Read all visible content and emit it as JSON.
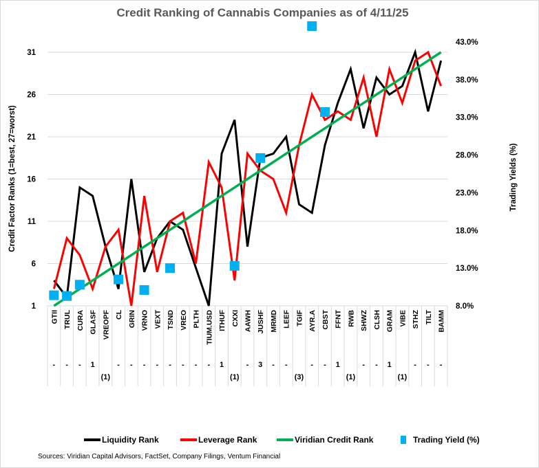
{
  "chart_data": {
    "type": "line",
    "title": "Credit Ranking of Cannabis Companies as of 4/11/25",
    "ylabel": "Credit Factor Ranks (1=best, 27=worst)",
    "y2label": "Trading Yields (%)",
    "ylim": [
      1,
      31
    ],
    "yticks": [
      "1",
      "6",
      "11",
      "16",
      "21",
      "26",
      "31"
    ],
    "y2lim": [
      8.0,
      43.0
    ],
    "y2ticks": [
      "8.0%",
      "13.0%",
      "18.0%",
      "23.0%",
      "28.0%",
      "33.0%",
      "38.0%",
      "43.0%"
    ],
    "grid": true,
    "legend_position": "bottom",
    "categories": [
      "GTII",
      "TRUL",
      "CURA",
      "GLASF",
      "VREOPF",
      "CL",
      "GRIN",
      "VRNO",
      "VEXT",
      "TSND",
      "VREO",
      "PLTH",
      "TIUM.USD",
      "ITHUF",
      "CXXI",
      "AAWH",
      "JUSHF",
      "MRMD",
      "LEEF",
      "TGIF",
      "AYR.A",
      "CBST",
      "FFNT",
      "RWB",
      "SHWZ",
      "CLSH",
      "GRAM",
      "VIBE",
      "STHZ",
      "TILT",
      "BAMM"
    ],
    "rank_changes": [
      "-",
      "-",
      "-",
      "1",
      "(1)",
      "-",
      "-",
      "-",
      "-",
      "-",
      "-",
      "-",
      "-",
      "1",
      "(1)",
      "-",
      "3",
      "-",
      "-",
      "(3)",
      "-",
      "-",
      "1",
      "(1)",
      "-",
      "-",
      "1",
      "(1)",
      "-",
      "-",
      "-"
    ],
    "series": [
      {
        "name": "Liquidity Rank",
        "color": "#000000",
        "axis": "left",
        "values": [
          4,
          2,
          15,
          14,
          8,
          3,
          16,
          5,
          9,
          11,
          10,
          5.5,
          1,
          19,
          23,
          8,
          18.5,
          19,
          21,
          13,
          12,
          20,
          25,
          29,
          22,
          28,
          26,
          27,
          31,
          24,
          30
        ]
      },
      {
        "name": "Leverage Rank",
        "color": "#ff0000",
        "axis": "left",
        "values": [
          3,
          9,
          7,
          3,
          8,
          10,
          1,
          14,
          5,
          11,
          12,
          6,
          18,
          15,
          4,
          19,
          17,
          16,
          12,
          20,
          26,
          23,
          24,
          23,
          28,
          21,
          29,
          25,
          30,
          31,
          27
        ]
      },
      {
        "name": "Viridian Credit Rank",
        "color": "#00b050",
        "axis": "left",
        "values": [
          1,
          2,
          3,
          4,
          5,
          6,
          7,
          8,
          9,
          10,
          11,
          12,
          13,
          14,
          15,
          16,
          17,
          18,
          19,
          20,
          21,
          22,
          23,
          24,
          25,
          26,
          27,
          28,
          29,
          30,
          31
        ]
      },
      {
        "name": "Trading Yield (%)",
        "color": "#00b0f0",
        "axis": "right",
        "marker": "square",
        "values": [
          9.4,
          9.3,
          10.8,
          null,
          null,
          11.5,
          null,
          10.1,
          null,
          13.0,
          null,
          null,
          null,
          null,
          13.3,
          null,
          27.6,
          null,
          null,
          null,
          45.1,
          33.7,
          null,
          null,
          null,
          null,
          null,
          null,
          null,
          null,
          null
        ]
      }
    ]
  },
  "source": "Sources: Viridian Capital Advisors, FactSet, Company Filings, Ventum Financial"
}
